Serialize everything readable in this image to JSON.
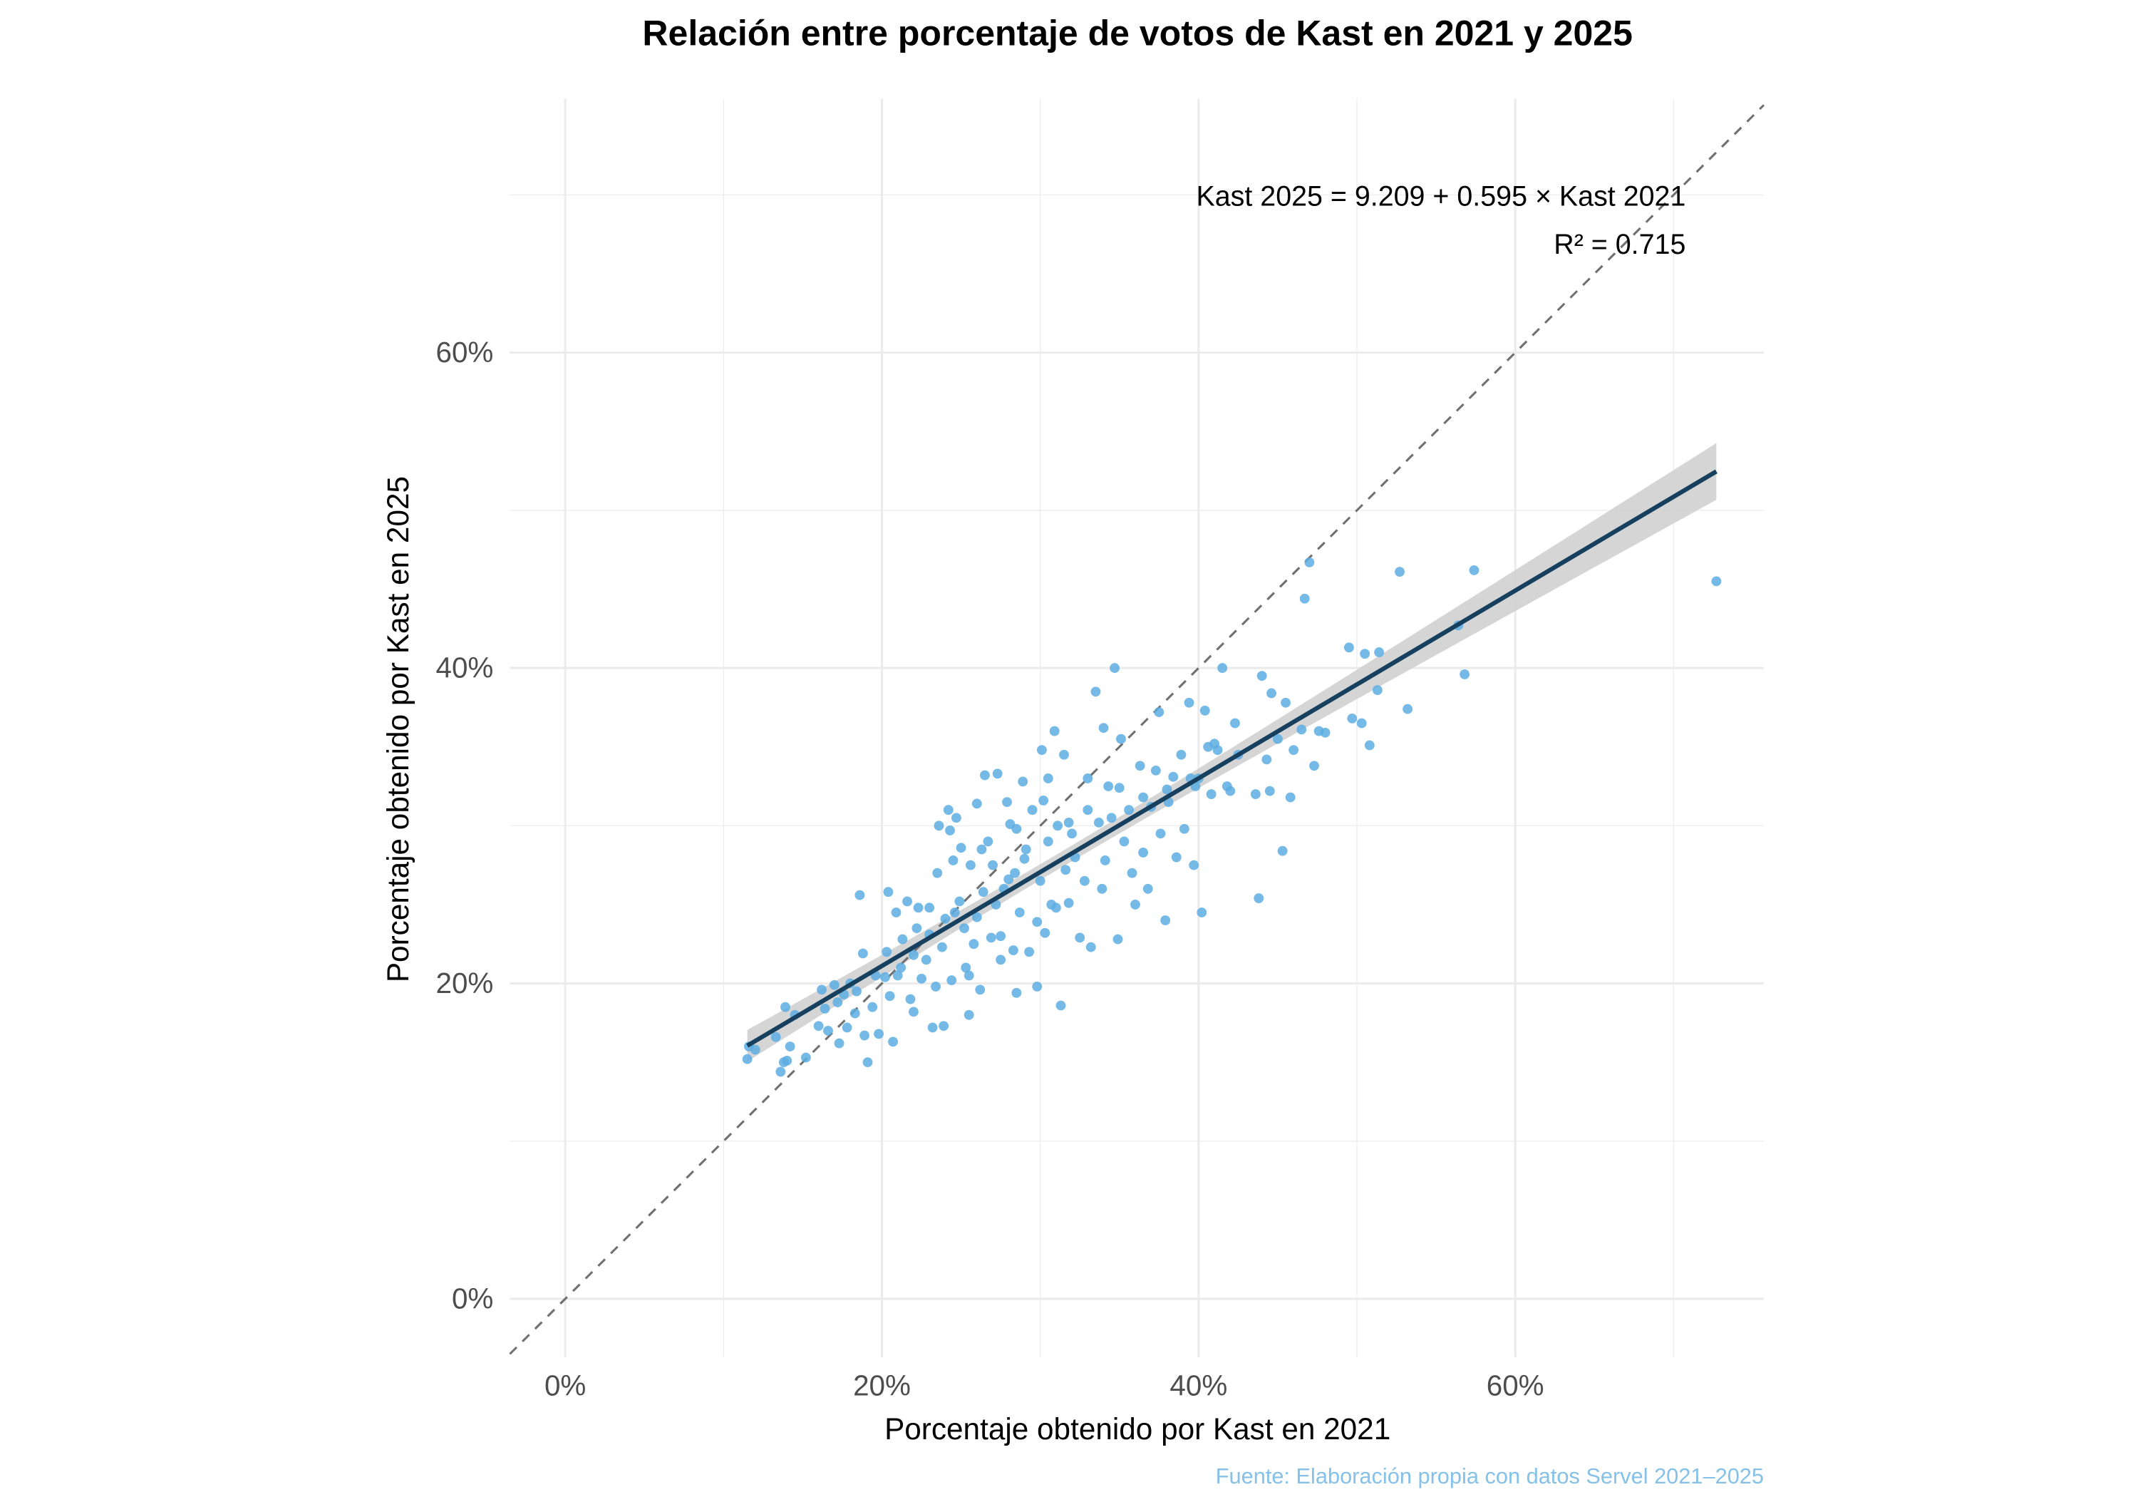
{
  "chart_data": {
    "type": "scatter",
    "title": "Relación entre porcentaje de votos de Kast en 2021 y 2025",
    "xlabel": "Porcentaje obtenido por Kast en 2021",
    "ylabel": "Porcentaje obtenido por Kast en 2025",
    "caption": "Fuente: Elaboración propia con datos Servel 2021–2025",
    "xlim": [
      -3.5,
      75.7
    ],
    "ylim": [
      -3.7,
      76.1
    ],
    "x_ticks": [
      0,
      20,
      40,
      60
    ],
    "y_ticks": [
      0,
      20,
      40,
      60
    ],
    "x_tick_labels": [
      "0%",
      "20%",
      "40%",
      "60%"
    ],
    "y_tick_labels": [
      "0%",
      "20%",
      "40%",
      "60%"
    ],
    "grid": true,
    "annotation": {
      "equation": "Kast 2025 = 9.209 + 0.595 × Kast 2021",
      "r2": "R² = 0.715"
    },
    "fit": {
      "intercept": 9.209,
      "slope": 0.595,
      "x_range": [
        11.5,
        72.7
      ],
      "ci_halfwidth_at_mean": 0.5,
      "ci_halfwidth_at_ends": [
        1.0,
        1.8
      ]
    },
    "reference_line": {
      "type": "identity",
      "style": "dashed"
    },
    "colors": {
      "points": "#5dade2",
      "fit": "#17405f",
      "ribbon": "#d0d0d0",
      "reference": "#707070",
      "grid": "#ebebeb",
      "caption": "#85c1e9"
    },
    "points": [
      [
        11.5,
        15.2
      ],
      [
        11.6,
        16
      ],
      [
        12,
        15.8
      ],
      [
        13.3,
        16.6
      ],
      [
        13.6,
        14.4
      ],
      [
        13.8,
        15
      ],
      [
        14,
        15.1
      ],
      [
        14.2,
        16
      ],
      [
        13.9,
        18.5
      ],
      [
        14.5,
        18
      ],
      [
        15.2,
        15.3
      ],
      [
        16,
        17.3
      ],
      [
        16.2,
        19.6
      ],
      [
        16.4,
        18.4
      ],
      [
        16.6,
        17
      ],
      [
        17,
        19.9
      ],
      [
        17.2,
        18.8
      ],
      [
        17.3,
        16.2
      ],
      [
        17.6,
        19.3
      ],
      [
        17.8,
        17.2
      ],
      [
        18,
        20
      ],
      [
        18.3,
        18.1
      ],
      [
        18.4,
        19.5
      ],
      [
        18.6,
        25.6
      ],
      [
        18.8,
        21.9
      ],
      [
        18.9,
        16.7
      ],
      [
        19.1,
        15
      ],
      [
        19.4,
        18.5
      ],
      [
        19.8,
        16.8
      ],
      [
        20.2,
        20.4
      ],
      [
        20.3,
        22
      ],
      [
        20.4,
        25.8
      ],
      [
        20.5,
        19.2
      ],
      [
        20.7,
        16.3
      ],
      [
        20.9,
        24.5
      ],
      [
        21,
        20.5
      ],
      [
        21.3,
        22.8
      ],
      [
        21.6,
        25.2
      ],
      [
        21.8,
        19
      ],
      [
        22,
        18.2
      ],
      [
        22.2,
        23.5
      ],
      [
        22.3,
        24.8
      ],
      [
        22.5,
        20.3
      ],
      [
        22.8,
        21.5
      ],
      [
        23,
        24.8
      ],
      [
        23.2,
        17.2
      ],
      [
        23.4,
        19.8
      ],
      [
        23.5,
        27
      ],
      [
        23.6,
        30
      ],
      [
        23.8,
        22.3
      ],
      [
        23.9,
        17.3
      ],
      [
        24,
        24.1
      ],
      [
        24.2,
        31
      ],
      [
        24.3,
        29.7
      ],
      [
        24.4,
        20.2
      ],
      [
        24.5,
        27.8
      ],
      [
        24.7,
        30.5
      ],
      [
        24.9,
        25.2
      ],
      [
        25,
        28.6
      ],
      [
        25.2,
        23.5
      ],
      [
        25.3,
        21
      ],
      [
        25.5,
        18
      ],
      [
        25.6,
        27.5
      ],
      [
        25.8,
        22.5
      ],
      [
        26,
        31.4
      ],
      [
        26.2,
        19.6
      ],
      [
        26.4,
        25.8
      ],
      [
        26.5,
        33.2
      ],
      [
        26.7,
        29
      ],
      [
        26.9,
        22.9
      ],
      [
        27,
        27.5
      ],
      [
        27.3,
        33.3
      ],
      [
        27.5,
        23
      ],
      [
        27.7,
        26
      ],
      [
        27.9,
        31.5
      ],
      [
        28.1,
        30.1
      ],
      [
        28.3,
        22.1
      ],
      [
        28.4,
        27
      ],
      [
        28.5,
        19.4
      ],
      [
        28.7,
        24.5
      ],
      [
        28.9,
        32.8
      ],
      [
        29.1,
        28.5
      ],
      [
        29.3,
        22
      ],
      [
        29.5,
        31
      ],
      [
        29.8,
        19.8
      ],
      [
        30,
        26.5
      ],
      [
        30.1,
        34.8
      ],
      [
        30.3,
        23.2
      ],
      [
        30.5,
        33
      ],
      [
        30.7,
        25
      ],
      [
        30.9,
        36
      ],
      [
        31.1,
        30
      ],
      [
        31.3,
        18.6
      ],
      [
        31.5,
        34.5
      ],
      [
        31.6,
        27.2
      ],
      [
        31.8,
        25.1
      ],
      [
        32.2,
        28
      ],
      [
        32.5,
        22.9
      ],
      [
        32.8,
        26.5
      ],
      [
        33,
        33
      ],
      [
        33.2,
        22.3
      ],
      [
        33.5,
        38.5
      ],
      [
        33.7,
        30.2
      ],
      [
        33.9,
        26
      ],
      [
        34.1,
        27.8
      ],
      [
        34.3,
        32.5
      ],
      [
        34.5,
        30.5
      ],
      [
        34.7,
        40
      ],
      [
        34.9,
        22.8
      ],
      [
        35.1,
        35.5
      ],
      [
        35.3,
        29
      ],
      [
        35.6,
        31
      ],
      [
        35.8,
        27
      ],
      [
        36,
        25
      ],
      [
        36.3,
        33.8
      ],
      [
        36.5,
        28.3
      ],
      [
        36.8,
        26
      ],
      [
        37,
        31.2
      ],
      [
        37.3,
        33.5
      ],
      [
        37.6,
        29.5
      ],
      [
        37.9,
        24
      ],
      [
        38.1,
        31.5
      ],
      [
        38.4,
        33.1
      ],
      [
        38.6,
        28
      ],
      [
        38.9,
        34.5
      ],
      [
        39.1,
        29.8
      ],
      [
        39.4,
        37.8
      ],
      [
        39.7,
        27.5
      ],
      [
        40,
        33
      ],
      [
        40.2,
        24.5
      ],
      [
        40.4,
        37.3
      ],
      [
        40.6,
        35
      ],
      [
        40.8,
        32
      ],
      [
        41.2,
        34.8
      ],
      [
        41.5,
        40
      ],
      [
        41.8,
        32.5
      ],
      [
        42.3,
        36.5
      ],
      [
        43.6,
        32
      ],
      [
        43.8,
        25.4
      ],
      [
        44,
        39.5
      ],
      [
        44.3,
        34.2
      ],
      [
        44.6,
        38.4
      ],
      [
        45,
        35.5
      ],
      [
        45.3,
        28.4
      ],
      [
        45.5,
        37.8
      ],
      [
        45.8,
        31.8
      ],
      [
        46.5,
        36.1
      ],
      [
        46.7,
        44.4
      ],
      [
        47,
        46.7
      ],
      [
        47.3,
        33.8
      ],
      [
        47.6,
        36
      ],
      [
        48,
        35.9
      ],
      [
        49.5,
        41.3
      ],
      [
        49.7,
        36.8
      ],
      [
        50.3,
        36.5
      ],
      [
        50.5,
        40.9
      ],
      [
        50.8,
        35.1
      ],
      [
        51.3,
        38.6
      ],
      [
        51.4,
        41
      ],
      [
        52.7,
        46.1
      ],
      [
        53.2,
        37.4
      ],
      [
        56.4,
        42.7
      ],
      [
        56.8,
        39.6
      ],
      [
        57.4,
        46.2
      ],
      [
        72.7,
        45.5
      ],
      [
        19.6,
        20.5
      ],
      [
        21.2,
        21
      ],
      [
        22,
        21.8
      ],
      [
        23,
        23.1
      ],
      [
        24.6,
        24.5
      ],
      [
        26,
        24.2
      ],
      [
        27.2,
        25
      ],
      [
        28,
        26.6
      ],
      [
        29,
        27.9
      ],
      [
        30.5,
        29
      ],
      [
        31.8,
        30.2
      ],
      [
        33,
        31
      ],
      [
        35,
        32.4
      ],
      [
        36.5,
        31.8
      ],
      [
        38,
        32.3
      ],
      [
        39.5,
        33
      ],
      [
        41,
        35.2
      ],
      [
        42.5,
        34.5
      ],
      [
        44.5,
        32.2
      ],
      [
        46,
        34.8
      ],
      [
        25.5,
        20.5
      ],
      [
        27.5,
        21.5
      ],
      [
        29.8,
        23.9
      ],
      [
        31,
        24.8
      ],
      [
        26.3,
        28.5
      ],
      [
        28.5,
        29.8
      ],
      [
        30.2,
        31.6
      ],
      [
        32,
        29.5
      ],
      [
        34,
        36.2
      ],
      [
        37.5,
        37.2
      ],
      [
        39.8,
        32.5
      ],
      [
        42,
        32.2
      ]
    ]
  }
}
